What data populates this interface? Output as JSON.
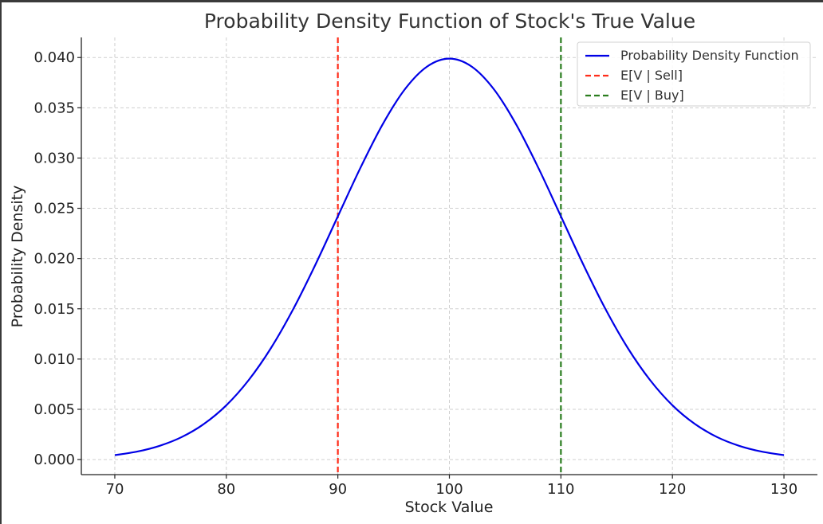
{
  "chart_data": {
    "type": "line",
    "title": "Probability Density Function of Stock's True Value",
    "xlabel": "Stock Value",
    "ylabel": "Probability Density",
    "xlim": [
      67,
      133
    ],
    "ylim": [
      -0.0015,
      0.042
    ],
    "x_ticks": [
      70,
      80,
      90,
      100,
      110,
      120,
      130
    ],
    "x_tick_labels": [
      "70",
      "80",
      "90",
      "100",
      "110",
      "120",
      "130"
    ],
    "y_ticks": [
      0.0,
      0.005,
      0.01,
      0.015,
      0.02,
      0.025,
      0.03,
      0.035,
      0.04
    ],
    "y_tick_labels": [
      "0.000",
      "0.005",
      "0.010",
      "0.015",
      "0.020",
      "0.025",
      "0.030",
      "0.035",
      "0.040"
    ],
    "grid": true,
    "legend_position": "top-right",
    "series": [
      {
        "name": "Probability Density Function",
        "style": "solid",
        "color": "#0000e6",
        "x": [
          70,
          72,
          74,
          76,
          78,
          80,
          82,
          84,
          86,
          88,
          90,
          92,
          94,
          96,
          98,
          100,
          102,
          104,
          106,
          108,
          110,
          112,
          114,
          116,
          118,
          120,
          122,
          124,
          126,
          128,
          130
        ],
        "y": [
          0.00044,
          0.00079,
          0.00136,
          0.00224,
          0.00355,
          0.0054,
          0.0079,
          0.01109,
          0.01497,
          0.01942,
          0.0242,
          0.02897,
          0.03332,
          0.03683,
          0.0391,
          0.03989,
          0.0391,
          0.03683,
          0.03332,
          0.02897,
          0.0242,
          0.01942,
          0.01497,
          0.01109,
          0.0079,
          0.0054,
          0.00355,
          0.00224,
          0.00136,
          0.00079,
          0.00044
        ]
      },
      {
        "name": "E[V | Sell]",
        "style": "dashed",
        "color": "#ff2d1a",
        "vline_x": 90
      },
      {
        "name": "E[V | Buy]",
        "style": "dashed",
        "color": "#2a7d1e",
        "vline_x": 110
      }
    ]
  }
}
